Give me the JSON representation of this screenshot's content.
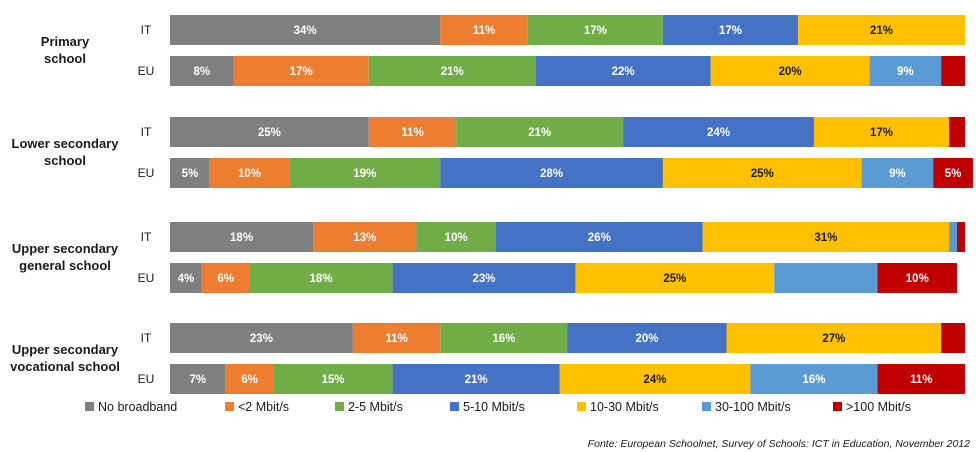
{
  "chart_data": {
    "type": "bar",
    "orientation": "horizontal",
    "stacked": true,
    "normalized": true,
    "xlim": [
      0,
      100
    ],
    "unit": "%",
    "legend_position": "bottom",
    "grid": false,
    "series": [
      {
        "name": "No broadband",
        "color": "#7f7f7f"
      },
      {
        "name": "<2 Mbit/s",
        "color": "#ed7d31"
      },
      {
        "name": "2-5 Mbit/s",
        "color": "#70ad47"
      },
      {
        "name": "5-10 Mbit/s",
        "color": "#4472c4"
      },
      {
        "name": "10-30 Mbit/s",
        "color": "#ffc000"
      },
      {
        "name": "30-100 Mbit/s",
        "color": "#5b9bd5"
      },
      {
        "name": ">100 Mbit/s",
        "color": "#c00000"
      }
    ],
    "groups": [
      {
        "label_lines": [
          "Primary",
          "school"
        ],
        "rows": [
          {
            "label": "IT",
            "values": [
              34,
              11,
              17,
              17,
              21,
              0,
              0
            ],
            "labels": [
              "34%",
              "11%",
              "17%",
              "17%",
              "21%",
              "",
              ""
            ]
          },
          {
            "label": "EU",
            "values": [
              8,
              17,
              21,
              22,
              20,
              9,
              3
            ],
            "labels": [
              "8%",
              "17%",
              "21%",
              "22%",
              "20%",
              "9%",
              ""
            ]
          }
        ]
      },
      {
        "label_lines": [
          "Lower secondary",
          "school"
        ],
        "rows": [
          {
            "label": "IT",
            "values": [
              25,
              11,
              21,
              24,
              17,
              0,
              2
            ],
            "labels": [
              "25%",
              "11%",
              "21%",
              "24%",
              "17%",
              "",
              ""
            ]
          },
          {
            "label": "EU",
            "values": [
              5,
              10,
              19,
              28,
              25,
              9,
              5
            ],
            "labels": [
              "5%",
              "10%",
              "19%",
              "28%",
              "25%",
              "9%",
              "5%"
            ]
          }
        ]
      },
      {
        "label_lines": [
          "Upper secondary",
          "general school"
        ],
        "rows": [
          {
            "label": "IT",
            "values": [
              18,
              13,
              10,
              26,
              31,
              1,
              1
            ],
            "labels": [
              "18%",
              "13%",
              "10%",
              "26%",
              "31%",
              "",
              ""
            ]
          },
          {
            "label": "EU",
            "values": [
              4,
              6,
              18,
              23,
              25,
              13,
              10
            ],
            "labels": [
              "4%",
              "6%",
              "18%",
              "23%",
              "25%",
              "",
              "10%"
            ]
          }
        ]
      },
      {
        "label_lines": [
          "Upper secondary",
          "vocational school"
        ],
        "rows": [
          {
            "label": "IT",
            "values": [
              23,
              11,
              16,
              20,
              27,
              0,
              3
            ],
            "labels": [
              "23%",
              "11%",
              "16%",
              "20%",
              "27%",
              "",
              ""
            ]
          },
          {
            "label": "EU",
            "values": [
              7,
              6,
              15,
              21,
              24,
              16,
              11
            ],
            "labels": [
              "7%",
              "6%",
              "15%",
              "21%",
              "24%",
              "16%",
              "11%"
            ]
          }
        ]
      }
    ],
    "source": "Fonte: European Schoolnet, Survey of Schools: ICT in Education, November 2012"
  }
}
